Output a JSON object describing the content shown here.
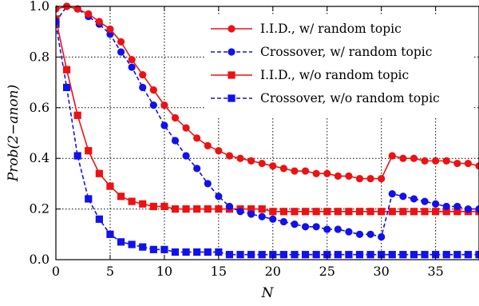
{
  "chart_data": {
    "type": "line",
    "xlabel": "N",
    "ylabel": "Prob(2−anon)",
    "xlim": [
      0,
      39
    ],
    "ylim": [
      0.0,
      1.0
    ],
    "xticks": [
      0,
      5,
      10,
      15,
      20,
      25,
      30,
      35
    ],
    "yticks": [
      0.0,
      0.2,
      0.4,
      0.6,
      0.8,
      1.0
    ],
    "xtick_labels": [
      "0",
      "5",
      "10",
      "15",
      "20",
      "25",
      "30",
      "35"
    ],
    "ytick_labels": [
      "0.0",
      "0.2",
      "0.4",
      "0.6",
      "0.8",
      "1.0"
    ],
    "grid": true,
    "legend_position": "top-right",
    "x": [
      0,
      1,
      2,
      3,
      4,
      5,
      6,
      7,
      8,
      9,
      10,
      11,
      12,
      13,
      14,
      15,
      16,
      17,
      18,
      19,
      20,
      21,
      22,
      23,
      24,
      25,
      26,
      27,
      28,
      29,
      30,
      31,
      32,
      33,
      34,
      35,
      36,
      37,
      38,
      39
    ],
    "series": [
      {
        "name": "I.I.D., w/ random topic",
        "color": "#ee1111",
        "marker": "circle",
        "dash": "solid",
        "values": [
          0.99,
          1.0,
          0.99,
          0.97,
          0.94,
          0.91,
          0.86,
          0.79,
          0.73,
          0.67,
          0.61,
          0.56,
          0.52,
          0.48,
          0.45,
          0.43,
          0.41,
          0.4,
          0.39,
          0.38,
          0.37,
          0.36,
          0.35,
          0.35,
          0.34,
          0.34,
          0.33,
          0.33,
          0.32,
          0.32,
          0.32,
          0.41,
          0.4,
          0.4,
          0.39,
          0.39,
          0.39,
          0.38,
          0.38,
          0.37
        ]
      },
      {
        "name": "Crossover, w/ random topic",
        "color": "#1111ee",
        "marker": "circle",
        "dash": "dashed",
        "values": [
          0.94,
          1.0,
          0.99,
          0.96,
          0.93,
          0.89,
          0.82,
          0.76,
          0.68,
          0.61,
          0.53,
          0.47,
          0.41,
          0.36,
          0.3,
          0.25,
          0.21,
          0.19,
          0.18,
          0.17,
          0.16,
          0.15,
          0.14,
          0.13,
          0.13,
          0.12,
          0.12,
          0.11,
          0.1,
          0.1,
          0.09,
          0.26,
          0.25,
          0.24,
          0.23,
          0.22,
          0.21,
          0.21,
          0.2,
          0.2
        ]
      },
      {
        "name": "I.I.D., w/o random topic",
        "color": "#ee1111",
        "marker": "square",
        "dash": "solid",
        "values": [
          0.95,
          0.75,
          0.57,
          0.43,
          0.34,
          0.29,
          0.25,
          0.23,
          0.22,
          0.21,
          0.21,
          0.2,
          0.2,
          0.2,
          0.2,
          0.2,
          0.2,
          0.2,
          0.2,
          0.2,
          0.19,
          0.19,
          0.19,
          0.19,
          0.19,
          0.19,
          0.19,
          0.19,
          0.19,
          0.19,
          0.19,
          0.19,
          0.19,
          0.19,
          0.19,
          0.19,
          0.19,
          0.19,
          0.19,
          0.19
        ]
      },
      {
        "name": "Crossover, w/o random topic",
        "color": "#1111ee",
        "marker": "square",
        "dash": "dashed",
        "values": [
          0.93,
          0.68,
          0.41,
          0.24,
          0.16,
          0.1,
          0.07,
          0.06,
          0.05,
          0.04,
          0.04,
          0.03,
          0.03,
          0.03,
          0.03,
          0.03,
          0.02,
          0.02,
          0.02,
          0.02,
          0.02,
          0.02,
          0.02,
          0.02,
          0.02,
          0.02,
          0.02,
          0.02,
          0.02,
          0.02,
          0.02,
          0.02,
          0.02,
          0.02,
          0.02,
          0.02,
          0.02,
          0.02,
          0.02,
          0.02
        ]
      }
    ]
  }
}
